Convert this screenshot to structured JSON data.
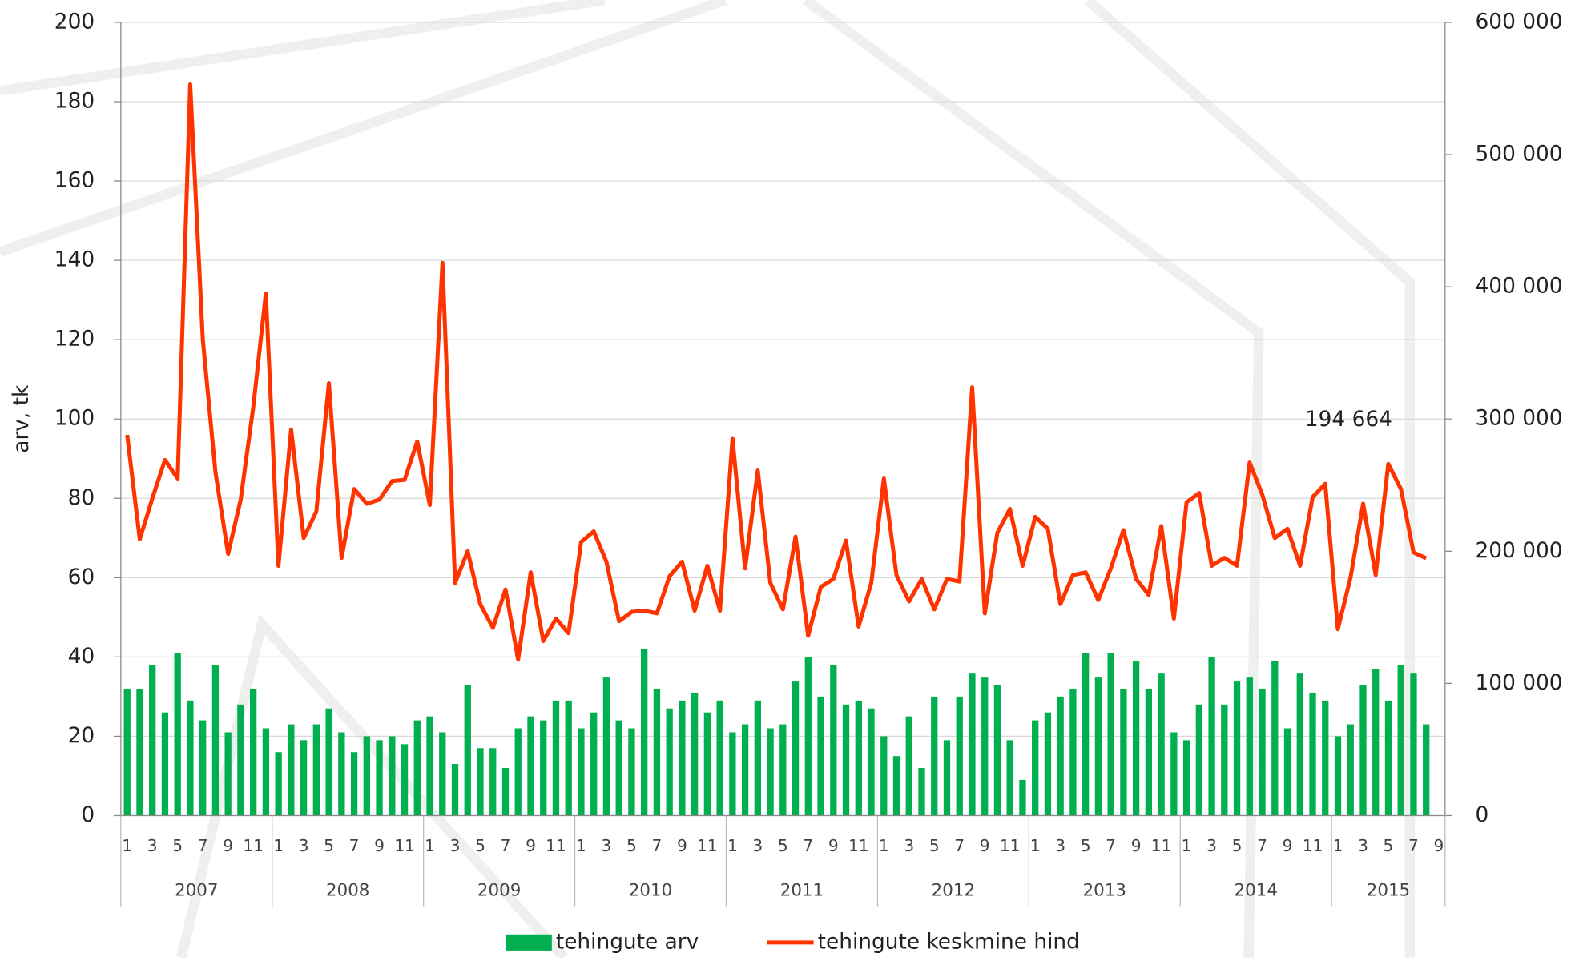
{
  "chart_data": {
    "type": "bar-line",
    "y_axis_label": "arv, tk",
    "categories": [
      "1",
      null,
      "3",
      null,
      "5",
      null,
      "7",
      null,
      "9",
      null,
      "11",
      null,
      "1",
      null,
      "3",
      null,
      "5",
      null,
      "7",
      null,
      "9",
      null,
      "11",
      null,
      "1",
      null,
      "3",
      null,
      "5",
      null,
      "7",
      null,
      "9",
      null,
      "11",
      null,
      "1",
      null,
      "3",
      null,
      "5",
      null,
      "7",
      null,
      "9",
      null,
      "11",
      null,
      "1",
      null,
      "3",
      null,
      "5",
      null,
      "7",
      null,
      "9",
      null,
      "11",
      null,
      "1",
      null,
      "3",
      null,
      "5",
      null,
      "7",
      null,
      "9",
      null,
      "11",
      null,
      "1",
      null,
      "3",
      null,
      "5",
      null,
      "7",
      null,
      "9",
      null,
      "11",
      null,
      "1",
      null,
      "3",
      null,
      "5",
      null,
      "7",
      null,
      "9",
      null,
      "11",
      null,
      "1",
      null,
      "3",
      null,
      "5",
      null,
      "7",
      null,
      "9"
    ],
    "year_groups": [
      {
        "label": "2007",
        "span": 12
      },
      {
        "label": "2008",
        "span": 12
      },
      {
        "label": "2009",
        "span": 12
      },
      {
        "label": "2010",
        "span": 12
      },
      {
        "label": "2011",
        "span": 12
      },
      {
        "label": "2012",
        "span": 12
      },
      {
        "label": "2013",
        "span": 12
      },
      {
        "label": "2014",
        "span": 12
      },
      {
        "label": "2015",
        "span": 9
      }
    ],
    "series": [
      {
        "name": "tehingute arv",
        "type": "bar",
        "color": "#00b050",
        "values": [
          32,
          32,
          38,
          26,
          41,
          29,
          24,
          38,
          21,
          28,
          32,
          22,
          16,
          23,
          19,
          23,
          27,
          21,
          16,
          20,
          19,
          20,
          18,
          24,
          25,
          21,
          13,
          33,
          17,
          17,
          12,
          22,
          25,
          24,
          29,
          29,
          22,
          26,
          35,
          24,
          22,
          42,
          32,
          27,
          29,
          31,
          26,
          29,
          21,
          23,
          29,
          22,
          23,
          34,
          40,
          30,
          38,
          28,
          29,
          27,
          20,
          15,
          25,
          12,
          30,
          19,
          30,
          36,
          35,
          33,
          19,
          9,
          24,
          26,
          30,
          32,
          41,
          35,
          41,
          32,
          39,
          32,
          36,
          21,
          19,
          28,
          40,
          28,
          34,
          35,
          32,
          39,
          22,
          36,
          31,
          29,
          20,
          23,
          33,
          37,
          29,
          38,
          36,
          23,
          null
        ]
      },
      {
        "name": "tehingute keskmine hind",
        "type": "line",
        "axis": "y2",
        "color": "#ff3300",
        "values": [
          288000,
          209000,
          240000,
          269000,
          255000,
          553000,
          360000,
          260000,
          198000,
          239000,
          309000,
          395000,
          189000,
          292000,
          210000,
          230000,
          327000,
          195000,
          247000,
          236000,
          239000,
          253000,
          254000,
          283000,
          235000,
          418000,
          176000,
          200000,
          160000,
          142000,
          171000,
          118000,
          184000,
          132000,
          149000,
          138000,
          207000,
          215000,
          192000,
          147000,
          154000,
          155000,
          153000,
          181000,
          192000,
          155000,
          189000,
          155000,
          285000,
          187000,
          261000,
          176000,
          156000,
          211000,
          136000,
          173000,
          179000,
          208000,
          143000,
          176000,
          255000,
          182000,
          162000,
          179000,
          156000,
          179000,
          177000,
          324000,
          153000,
          214000,
          232000,
          189000,
          226000,
          217000,
          160000,
          182000,
          184000,
          163000,
          187000,
          216000,
          179000,
          167000,
          219000,
          149000,
          237000,
          244000,
          189000,
          195000,
          189000,
          267000,
          243000,
          210000,
          217000,
          189000,
          241000,
          251000,
          141000,
          180000,
          236000,
          182000,
          266000,
          247000,
          199000,
          194664,
          null
        ],
        "value_labels": [
          null,
          null,
          null,
          null,
          null,
          null,
          null,
          null,
          null,
          null,
          null,
          null,
          null,
          null,
          null,
          null,
          null,
          null,
          null,
          null,
          null,
          null,
          null,
          null,
          null,
          null,
          null,
          null,
          null,
          null,
          null,
          null,
          null,
          null,
          null,
          null,
          null,
          null,
          null,
          null,
          null,
          null,
          null,
          null,
          null,
          null,
          null,
          null,
          null,
          null,
          null,
          null,
          null,
          null,
          null,
          null,
          null,
          null,
          null,
          null,
          null,
          null,
          null,
          null,
          null,
          null,
          null,
          null,
          null,
          null,
          null,
          null,
          null,
          null,
          null,
          null,
          null,
          null,
          null,
          null,
          null,
          null,
          null,
          null,
          null,
          null,
          null,
          null,
          null,
          null,
          null,
          null,
          null,
          null,
          null,
          null,
          null,
          null,
          null,
          null,
          null,
          null,
          null,
          "194 664",
          null
        ]
      }
    ],
    "ylim": [
      0,
      200
    ],
    "yticks": [
      0,
      20,
      40,
      60,
      80,
      100,
      120,
      140,
      160,
      180,
      200
    ],
    "y2lim": [
      0,
      600000
    ],
    "y2ticks": [
      0,
      {
        "value": 100000,
        "label": "100 000"
      },
      {
        "value": 200000,
        "label": "200 000"
      },
      {
        "value": 300000,
        "label": "300 000"
      },
      {
        "value": 400000,
        "label": "400 000"
      },
      {
        "value": 500000,
        "label": "500 000"
      },
      {
        "value": 600000,
        "label": "600 000"
      }
    ],
    "grid": true,
    "legend": "bottom"
  }
}
